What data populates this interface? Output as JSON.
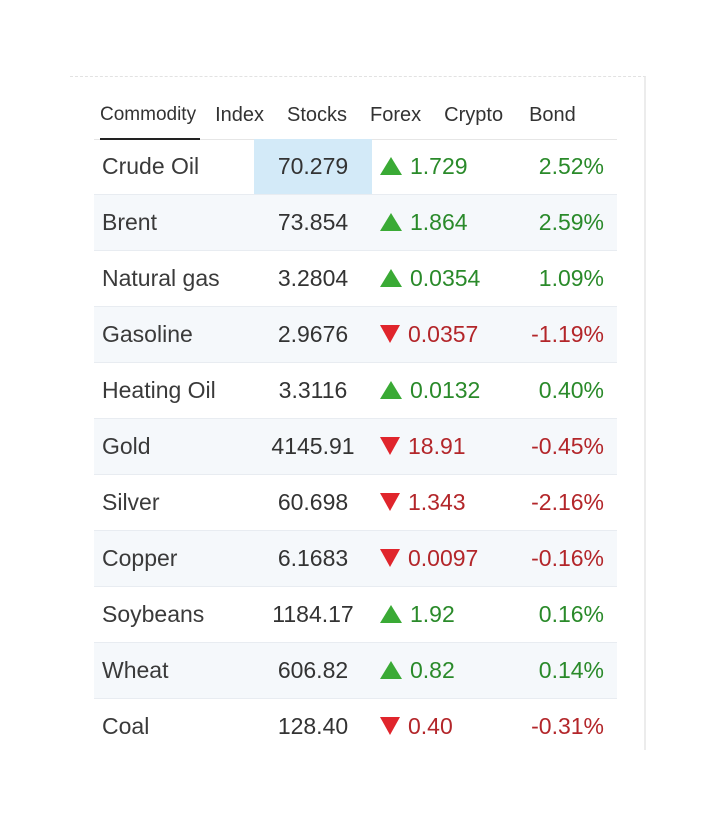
{
  "tabs": [
    {
      "label": "Commodity",
      "active": true
    },
    {
      "label": "Index",
      "active": false
    },
    {
      "label": "Stocks",
      "active": false
    },
    {
      "label": "Forex",
      "active": false
    },
    {
      "label": "Crypto",
      "active": false
    },
    {
      "label": "Bond",
      "active": false
    }
  ],
  "colors": {
    "up": "#2a8a2a",
    "down": "#b3262a",
    "up_arrow": "#3aaa35",
    "down_arrow": "#e0252c",
    "highlight": "#d3eaf8"
  },
  "rows": [
    {
      "name": "Crude Oil",
      "price": "70.279",
      "change": "1.729",
      "percent": "2.52%",
      "direction": "up",
      "highlighted": true
    },
    {
      "name": "Brent",
      "price": "73.854",
      "change": "1.864",
      "percent": "2.59%",
      "direction": "up"
    },
    {
      "name": "Natural gas",
      "price": "3.2804",
      "change": "0.0354",
      "percent": "1.09%",
      "direction": "up"
    },
    {
      "name": "Gasoline",
      "price": "2.9676",
      "change": "0.0357",
      "percent": "-1.19%",
      "direction": "down"
    },
    {
      "name": "Heating Oil",
      "price": "3.3116",
      "change": "0.0132",
      "percent": "0.40%",
      "direction": "up"
    },
    {
      "name": "Gold",
      "price": "4145.91",
      "change": "18.91",
      "percent": "-0.45%",
      "direction": "down"
    },
    {
      "name": "Silver",
      "price": "60.698",
      "change": "1.343",
      "percent": "-2.16%",
      "direction": "down"
    },
    {
      "name": "Copper",
      "price": "6.1683",
      "change": "0.0097",
      "percent": "-0.16%",
      "direction": "down"
    },
    {
      "name": "Soybeans",
      "price": "1184.17",
      "change": "1.92",
      "percent": "0.16%",
      "direction": "up"
    },
    {
      "name": "Wheat",
      "price": "606.82",
      "change": "0.82",
      "percent": "0.14%",
      "direction": "up"
    },
    {
      "name": "Coal",
      "price": "128.40",
      "change": "0.40",
      "percent": "-0.31%",
      "direction": "down"
    }
  ]
}
